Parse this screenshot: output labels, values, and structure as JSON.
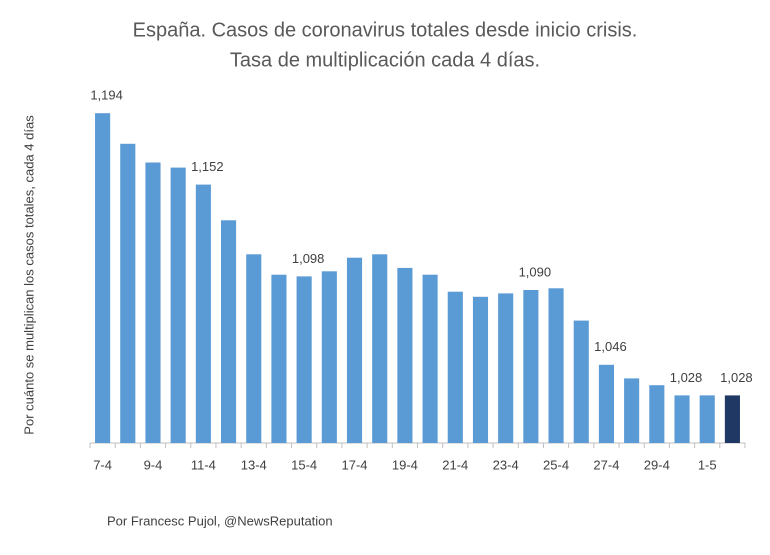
{
  "chart_data": {
    "type": "bar",
    "title": "España. Casos de coronavirus totales desde inicio crisis.",
    "subtitle": "Tasa de multiplicación cada 4 días.",
    "y_label": "Por cuánto se multiplican los casos totales, cada 4 días",
    "source": "Por Francesc Pujol, @NewsReputation",
    "categories": [
      "7-4",
      null,
      "9-4",
      null,
      "11-4",
      null,
      "13-4",
      null,
      "15-4",
      null,
      "17-4",
      null,
      "19-4",
      null,
      "21-4",
      null,
      "23-4",
      null,
      "25-4",
      null,
      "27-4",
      null,
      "29-4",
      null,
      "1-5",
      null
    ],
    "values": [
      1.194,
      1.176,
      1.165,
      1.162,
      1.152,
      1.131,
      1.111,
      1.099,
      1.098,
      1.101,
      1.109,
      1.111,
      1.103,
      1.099,
      1.089,
      1.086,
      1.088,
      1.09,
      1.091,
      1.072,
      1.046,
      1.038,
      1.034,
      1.028,
      1.028,
      1.028
    ],
    "value_labels": [
      "1,194",
      null,
      null,
      null,
      "1,152",
      null,
      null,
      null,
      "1,098",
      null,
      null,
      null,
      null,
      null,
      null,
      null,
      null,
      "1,090",
      null,
      null,
      "1,046",
      null,
      null,
      "1,028",
      null,
      "1,028"
    ],
    "colors": [
      "#5b9bd5",
      "#5b9bd5",
      "#5b9bd5",
      "#5b9bd5",
      "#5b9bd5",
      "#5b9bd5",
      "#5b9bd5",
      "#5b9bd5",
      "#5b9bd5",
      "#5b9bd5",
      "#5b9bd5",
      "#5b9bd5",
      "#5b9bd5",
      "#5b9bd5",
      "#5b9bd5",
      "#5b9bd5",
      "#5b9bd5",
      "#5b9bd5",
      "#5b9bd5",
      "#5b9bd5",
      "#5b9bd5",
      "#5b9bd5",
      "#5b9bd5",
      "#5b9bd5",
      "#5b9bd5",
      "#1f3864"
    ],
    "ylim": [
      1,
      1.2
    ]
  }
}
